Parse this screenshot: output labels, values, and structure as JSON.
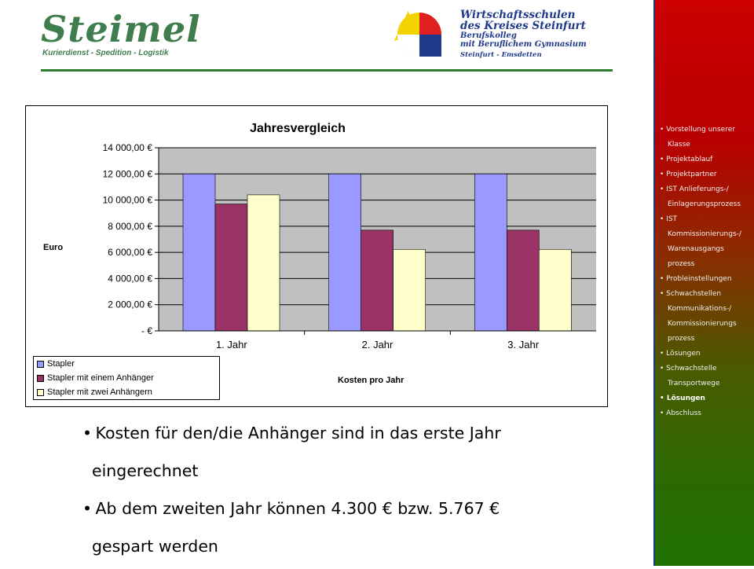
{
  "header": {
    "steimel_name": "Steimel",
    "steimel_tagline": "Kurierdienst - Spedition - Logistik",
    "school_line1": "Wirtschaftsschulen",
    "school_line2": "des Kreises Steinfurt",
    "school_line3": "Berufskolleg",
    "school_line4": "mit Beruflichem Gymnasium",
    "school_line5": "Steinfurt - Emsdetten"
  },
  "colors": {
    "stapler": "#9999ff",
    "anhaenger1": "#993366",
    "anhaenger2": "#ffffcc",
    "plot_bg": "#c0c0c0",
    "accent_green": "#2f7d32"
  },
  "chart_data": {
    "type": "bar",
    "title": "Jahresvergleich",
    "ylabel": "Euro",
    "xlabel": "Kosten pro Jahr",
    "categories": [
      "1. Jahr",
      "2. Jahr",
      "3. Jahr"
    ],
    "series": [
      {
        "name": "Stapler",
        "values": [
          12000,
          12000,
          12000
        ]
      },
      {
        "name": "Stapler mit einem Anhänger",
        "values": [
          9700,
          7700,
          7700
        ]
      },
      {
        "name": "Stapler mit zwei Anhängern",
        "values": [
          10400,
          6233,
          6233
        ]
      }
    ],
    "ylim": [
      0,
      14000
    ],
    "yticks": [
      0,
      2000,
      4000,
      6000,
      8000,
      10000,
      12000,
      14000
    ],
    "ytick_labels": [
      "-   €",
      "2 000,00 €",
      "4 000,00 €",
      "6 000,00 €",
      "8 000,00 €",
      "10 000,00 €",
      "12 000,00 €",
      "14 000,00 €"
    ],
    "grid": true,
    "legend_position": "bottom-left"
  },
  "bullets": [
    {
      "line1": "Kosten für den/die Anhänger sind in das erste Jahr",
      "line2": "eingerechnet"
    },
    {
      "line1": "Ab dem zweiten Jahr können 4.300 € bzw. 5.767 €",
      "line2": "gespart werden"
    }
  ],
  "sidebar": {
    "items": [
      {
        "lines": [
          "Vorstellung unserer",
          "Klasse"
        ],
        "active": false
      },
      {
        "lines": [
          "Projektablauf"
        ],
        "active": false
      },
      {
        "lines": [
          "Projektpartner"
        ],
        "active": false
      },
      {
        "lines": [
          "IST Anlieferungs-/",
          "Einlagerungsprozess"
        ],
        "active": false
      },
      {
        "lines": [
          "IST",
          "Kommissionierungs-/",
          "Warenausgangs",
          "prozess"
        ],
        "active": false
      },
      {
        "lines": [
          "Probleinstellungen"
        ],
        "active": false
      },
      {
        "lines": [
          "Schwachstellen",
          "Kommunikations-/",
          "Kommissionierungs",
          "prozess"
        ],
        "active": false
      },
      {
        "lines": [
          "Lösungen"
        ],
        "active": false
      },
      {
        "lines": [
          "Schwachstelle",
          "Transportwege"
        ],
        "active": false
      },
      {
        "lines": [
          "Lösungen"
        ],
        "active": true
      },
      {
        "lines": [
          "Abschluss"
        ],
        "active": false
      }
    ]
  }
}
